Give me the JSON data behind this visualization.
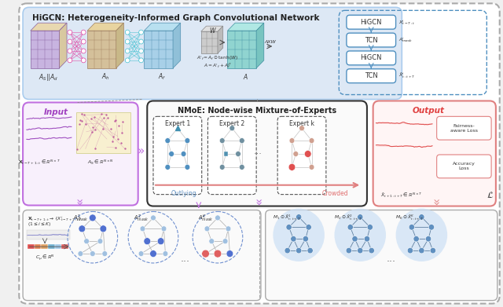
{
  "title_higcn": "HiGCN: Heterogeneity-Informed Graph Convolutional Network",
  "title_nmoe": "NMoE: Node-wise Mixture-of-Experts",
  "label_input": "Input",
  "label_output": "Output",
  "label_higcn": "HiGCN",
  "label_tcn": "TCN",
  "label_expert1": "Expert 1",
  "label_expert2": "Expert 2",
  "label_expertk": "Expert k",
  "label_outlying": "Outlying",
  "label_crowded": "Crowded",
  "label_fairness": "Fairness-\naware Loss",
  "label_accuracy": "Accuracy\nLoss",
  "higcn_box_color": "#dde8f5",
  "pink_color": "#e040a0",
  "cyan_color": "#40c0d0"
}
